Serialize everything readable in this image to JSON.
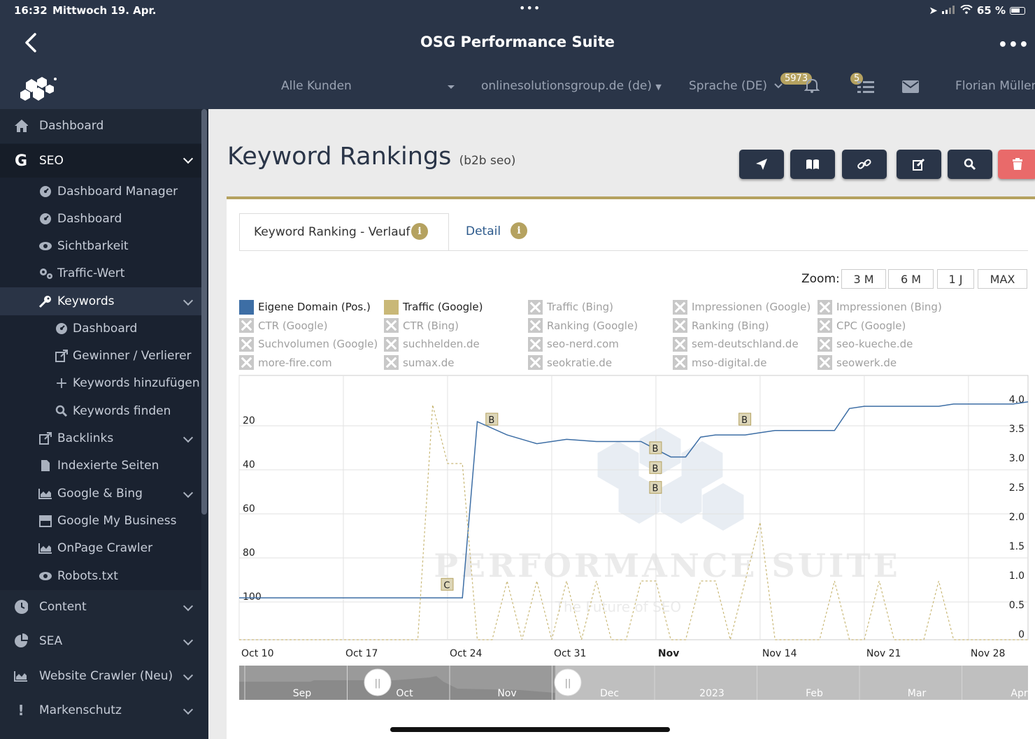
{
  "status": {
    "time": "16:32",
    "date": "Mittwoch 19. Apr.",
    "battery": "65 %"
  },
  "app": {
    "title": "OSG Performance Suite"
  },
  "header": {
    "customer_select": "Alle Kunden",
    "domain_select": "onlinesolutionsgroup.de (de)",
    "language_select": "Sprache (DE)",
    "notification_count": "5973",
    "task_count": "5",
    "user_name": "Florian Müller"
  },
  "sidebar": {
    "items": [
      {
        "label": "Dashboard",
        "icon": "home-icon"
      },
      {
        "label": "SEO",
        "icon": "google-icon"
      },
      {
        "label": "Dashboard Manager",
        "icon": "dashboard-icon"
      },
      {
        "label": "Dashboard",
        "icon": "dashboard-icon"
      },
      {
        "label": "Sichtbarkeit",
        "icon": "eye-icon"
      },
      {
        "label": "Traffic-Wert",
        "icon": "gears-icon"
      },
      {
        "label": "Keywords",
        "icon": "key-icon"
      },
      {
        "label": "Dashboard",
        "icon": "dashboard-icon"
      },
      {
        "label": "Gewinner / Verlierer",
        "icon": "external-link-icon"
      },
      {
        "label": "Keywords hinzufügen",
        "icon": "plus-icon"
      },
      {
        "label": "Keywords finden",
        "icon": "search-icon"
      },
      {
        "label": "Backlinks",
        "icon": "external-link-icon"
      },
      {
        "label": "Indexierte Seiten",
        "icon": "file-icon"
      },
      {
        "label": "Google & Bing",
        "icon": "area-chart-icon"
      },
      {
        "label": "Google My Business",
        "icon": "store-icon"
      },
      {
        "label": "OnPage Crawler",
        "icon": "area-chart-icon"
      },
      {
        "label": "Robots.txt",
        "icon": "eye-icon"
      },
      {
        "label": "Content",
        "icon": "clock-icon"
      },
      {
        "label": "SEA",
        "icon": "pie-chart-icon"
      },
      {
        "label": "Website Crawler (Neu)",
        "icon": "area-chart-icon"
      },
      {
        "label": "Markenschutz",
        "icon": "exclamation-icon"
      }
    ]
  },
  "page": {
    "title": "Keyword Rankings",
    "subtitle": "(b2b seo)"
  },
  "toolbar": {
    "buttons": [
      "send-icon",
      "book-icon",
      "link-icon",
      "edit-icon",
      "search-icon",
      "trash-icon"
    ],
    "delete_color": "#e96a6a"
  },
  "tabs": {
    "verlauf": "Keyword Ranking - Verlauf",
    "detail": "Detail",
    "info_glyph": "i"
  },
  "zoom": {
    "label": "Zoom:",
    "options": [
      "3 M",
      "6 M",
      "1 J",
      "MAX"
    ]
  },
  "legend": [
    {
      "label": "Eigene Domain (Pos.)",
      "active": true,
      "color": "#3d6ea5"
    },
    {
      "label": "Traffic (Google)",
      "active": true,
      "color": "#c9b877"
    },
    {
      "label": "Traffic (Bing)",
      "active": false
    },
    {
      "label": "Impressionen (Google)",
      "active": false
    },
    {
      "label": "Impressionen (Bing)",
      "active": false
    },
    {
      "label": "CTR (Google)",
      "active": false
    },
    {
      "label": "CTR (Bing)",
      "active": false
    },
    {
      "label": "Ranking (Google)",
      "active": false
    },
    {
      "label": "Ranking (Bing)",
      "active": false
    },
    {
      "label": "CPC (Google)",
      "active": false
    },
    {
      "label": "Suchvolumen (Google)",
      "active": false
    },
    {
      "label": "suchhelden.de",
      "active": false
    },
    {
      "label": "seo-nerd.com",
      "active": false
    },
    {
      "label": "sem-deutschland.de",
      "active": false
    },
    {
      "label": "seo-kueche.de",
      "active": false
    },
    {
      "label": "more-fire.com",
      "active": false
    },
    {
      "label": "sumax.de",
      "active": false
    },
    {
      "label": "seokratie.de",
      "active": false
    },
    {
      "label": "mso-digital.de",
      "active": false
    },
    {
      "label": "seowerk.de",
      "active": false
    }
  ],
  "watermark": {
    "title": "Performance Suite",
    "tagline": "The Future of SEO"
  },
  "chart_data": {
    "type": "line",
    "x_start": "2022-10-10",
    "x_end": "2022-12-02",
    "x_ticks": [
      {
        "date": "2022-10-10",
        "label": "Oct 10",
        "bold": false
      },
      {
        "date": "2022-10-17",
        "label": "Oct 17",
        "bold": false
      },
      {
        "date": "2022-10-24",
        "label": "Oct 24",
        "bold": false
      },
      {
        "date": "2022-10-31",
        "label": "Oct 31",
        "bold": false
      },
      {
        "date": "2022-11-07",
        "label": "Nov",
        "bold": true
      },
      {
        "date": "2022-11-14",
        "label": "Nov 14",
        "bold": false
      },
      {
        "date": "2022-11-21",
        "label": "Nov 21",
        "bold": false
      },
      {
        "date": "2022-11-28",
        "label": "Nov 28",
        "bold": false
      }
    ],
    "y_left": {
      "label": "",
      "reversed": true,
      "min": 0,
      "max": 120,
      "ticks": [
        20,
        40,
        60,
        80,
        100
      ]
    },
    "y_right": {
      "label": "",
      "min": 0,
      "max": 4.5,
      "ticks": [
        "0",
        "0.5",
        "1.0",
        "1.5",
        "2.0",
        "2.5",
        "3.0",
        "3.5",
        "4.0"
      ]
    },
    "series": [
      {
        "name": "Eigene Domain (Pos.)",
        "axis": "left",
        "style": "solid",
        "color": "#3d6ea5",
        "points": [
          [
            "2022-10-10",
            101
          ],
          [
            "2022-10-25",
            101
          ],
          [
            "2022-10-26",
            21
          ],
          [
            "2022-10-28",
            27
          ],
          [
            "2022-10-30",
            31
          ],
          [
            "2022-11-01",
            29
          ],
          [
            "2022-11-03",
            30
          ],
          [
            "2022-11-06",
            30
          ],
          [
            "2022-11-08",
            37
          ],
          [
            "2022-11-09",
            37
          ],
          [
            "2022-11-10",
            28
          ],
          [
            "2022-11-11",
            27
          ],
          [
            "2022-11-13",
            27
          ],
          [
            "2022-11-14",
            26
          ],
          [
            "2022-11-15",
            25
          ],
          [
            "2022-11-17",
            25
          ],
          [
            "2022-11-19",
            25
          ],
          [
            "2022-11-20",
            15
          ],
          [
            "2022-11-21",
            14
          ],
          [
            "2022-11-23",
            14
          ],
          [
            "2022-11-25",
            14
          ],
          [
            "2022-11-26",
            14
          ],
          [
            "2022-11-27",
            13
          ],
          [
            "2022-11-29",
            13
          ],
          [
            "2022-11-30",
            13
          ],
          [
            "2022-12-01",
            13
          ],
          [
            "2022-12-02",
            12
          ]
        ]
      },
      {
        "name": "Traffic (Google)",
        "axis": "right",
        "style": "dashed",
        "color": "#c9b877",
        "points": [
          [
            "2022-10-10",
            0
          ],
          [
            "2022-10-22",
            0
          ],
          [
            "2022-10-23",
            4
          ],
          [
            "2022-10-24",
            3
          ],
          [
            "2022-10-25",
            3
          ],
          [
            "2022-10-26",
            0
          ],
          [
            "2022-10-27",
            0
          ],
          [
            "2022-10-28",
            1
          ],
          [
            "2022-10-29",
            0
          ],
          [
            "2022-10-30",
            1
          ],
          [
            "2022-10-31",
            0
          ],
          [
            "2022-11-01",
            1
          ],
          [
            "2022-11-02",
            0
          ],
          [
            "2022-11-03",
            1
          ],
          [
            "2022-11-04",
            0
          ],
          [
            "2022-11-05",
            0
          ],
          [
            "2022-11-06",
            1
          ],
          [
            "2022-11-07",
            1
          ],
          [
            "2022-11-08",
            0
          ],
          [
            "2022-11-09",
            0
          ],
          [
            "2022-11-10",
            1
          ],
          [
            "2022-11-11",
            1
          ],
          [
            "2022-11-12",
            0
          ],
          [
            "2022-11-13",
            1
          ],
          [
            "2022-11-14",
            2
          ],
          [
            "2022-11-15",
            0
          ],
          [
            "2022-11-16",
            0
          ],
          [
            "2022-11-17",
            0
          ],
          [
            "2022-11-18",
            0
          ],
          [
            "2022-11-19",
            1
          ],
          [
            "2022-11-20",
            0
          ],
          [
            "2022-11-21",
            0
          ],
          [
            "2022-11-22",
            1
          ],
          [
            "2022-11-23",
            0
          ],
          [
            "2022-11-24",
            0
          ],
          [
            "2022-11-25",
            0
          ],
          [
            "2022-11-26",
            1
          ],
          [
            "2022-11-27",
            0
          ],
          [
            "2022-12-02",
            0
          ]
        ]
      }
    ],
    "annotations": [
      {
        "date": "2022-10-27",
        "value": 20,
        "text": "B"
      },
      {
        "date": "2022-11-07",
        "value": 33,
        "text": "B"
      },
      {
        "date": "2022-11-07",
        "value": 42,
        "text": "B"
      },
      {
        "date": "2022-11-07",
        "value": 51,
        "text": "B"
      },
      {
        "date": "2022-11-13",
        "value": 20,
        "text": "B"
      },
      {
        "date": "2022-10-24",
        "value": 95,
        "text": "C"
      }
    ],
    "navigator": {
      "labels": [
        "Sep",
        "Oct",
        "Nov",
        "Dec",
        "2023",
        "Feb",
        "Mar",
        "Apr"
      ],
      "handle_glyph": "||"
    }
  }
}
